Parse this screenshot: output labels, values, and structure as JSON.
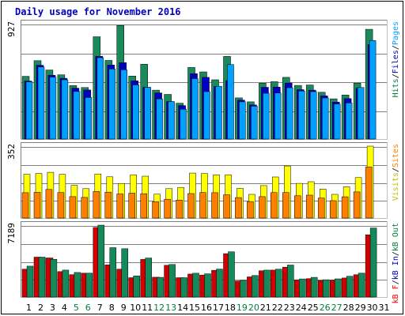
{
  "chart_data": {
    "type": "bar",
    "title": "Daily usage for November 2016",
    "days": [
      "1",
      "2",
      "3",
      "4",
      "5",
      "6",
      "7",
      "8",
      "9",
      "10",
      "11",
      "12",
      "13",
      "14",
      "15",
      "16",
      "17",
      "18",
      "19",
      "20",
      "21",
      "22",
      "23",
      "24",
      "25",
      "26",
      "27",
      "28",
      "29",
      "30",
      "31"
    ],
    "weekend_days": [
      5,
      6,
      12,
      13,
      19,
      20,
      26,
      27
    ],
    "panels": [
      {
        "id": "hits",
        "max_label": "927",
        "ymax": 927,
        "legend": [
          {
            "text": "Hits",
            "color": "#008040"
          },
          {
            "text": "/",
            "color": "#000000"
          },
          {
            "text": "Files",
            "color": "#0000c0"
          },
          {
            "text": "/",
            "color": "#000000"
          },
          {
            "text": "Pages",
            "color": "#00a0ff"
          }
        ],
        "series": [
          {
            "name": "Hits",
            "color": "#1a8a5a",
            "values": [
              504,
              630,
              555,
              516,
              430,
              414,
              822,
              632,
              913,
              506,
              601,
              393,
              359,
              288,
              575,
              540,
              476,
              664,
              331,
              299,
              449,
              461,
              496,
              431,
              434,
              376,
              323,
              354,
              449,
              882,
              0
            ]
          },
          {
            "name": "Files",
            "color": "#0000c0",
            "values": [
              466,
              593,
              513,
              488,
              409,
              394,
              665,
              595,
              614,
              468,
              416,
              371,
              301,
              269,
              526,
              496,
              422,
              469,
              313,
              274,
              416,
              418,
              450,
              397,
              393,
              347,
              297,
              325,
              408,
              759,
              0
            ]
          },
          {
            "name": "Pages",
            "color": "#00a0ff",
            "values": [
              459,
              579,
              498,
              476,
              382,
              334,
              654,
              563,
              557,
              435,
              416,
              322,
              301,
              240,
              486,
              381,
              424,
              599,
              299,
              264,
              368,
              370,
              413,
              386,
              381,
              330,
              281,
              290,
              414,
              792,
              0
            ]
          }
        ]
      },
      {
        "id": "visits",
        "max_label": "352",
        "ymax": 352,
        "legend": [
          {
            "text": "Visits",
            "color": "#c0c000"
          },
          {
            "text": "/",
            "color": "#000000"
          },
          {
            "text": "Sites",
            "color": "#ff8000"
          }
        ],
        "series": [
          {
            "name": "Visits",
            "color": "#ffff00",
            "values": [
              214,
              218,
              224,
              214,
              160,
              144,
              216,
              202,
              169,
              212,
              205,
              117,
              144,
              150,
              220,
              218,
              212,
              212,
              145,
              116,
              159,
              201,
              255,
              170,
              178,
              142,
              116,
              153,
              198,
              352,
              0
            ]
          },
          {
            "name": "Sites",
            "color": "#ff8000",
            "values": [
              124,
              126,
              140,
              125,
              105,
              101,
              130,
              127,
              118,
              122,
              119,
              80,
              92,
              88,
              120,
              125,
              124,
              114,
              100,
              81,
              105,
              125,
              125,
              109,
              112,
              98,
              85,
              104,
              128,
              250,
              0
            ]
          }
        ]
      },
      {
        "id": "kbytes",
        "max_label": "7189",
        "ymax": 7189,
        "legend": [
          {
            "text": "kB F",
            "color": "#ff0000"
          },
          {
            "text": "/",
            "color": "#000000"
          },
          {
            "text": "kB In",
            "color": "#0000c0"
          },
          {
            "text": "/",
            "color": "#000000"
          },
          {
            "text": "kB Out",
            "color": "#008040"
          }
        ],
        "series": [
          {
            "name": "kB F",
            "color": "#d00000",
            "values": [
              2788,
              3993,
              3912,
              2545,
              2239,
              2387,
              6963,
              3221,
              2787,
              1935,
              3762,
              1982,
              3177,
              1935,
              2300,
              2198,
              2674,
              4340,
              1607,
              2012,
              2634,
              2696,
              2990,
              1707,
              1838,
              1652,
              1679,
              1900,
              2239,
              6223,
              0
            ]
          },
          {
            "name": "kB Out",
            "color": "#148a5a",
            "values": [
              3087,
              3993,
              3776,
              2697,
              2460,
              2387,
              7189,
              4937,
              4836,
              2117,
              3899,
              1968,
              3252,
              1935,
              2378,
              2324,
              2800,
              4529,
              1667,
              2150,
              2697,
              2787,
              3203,
              1806,
              1965,
              1733,
              1819,
              2081,
              2388,
              6903,
              0
            ]
          }
        ]
      }
    ]
  }
}
